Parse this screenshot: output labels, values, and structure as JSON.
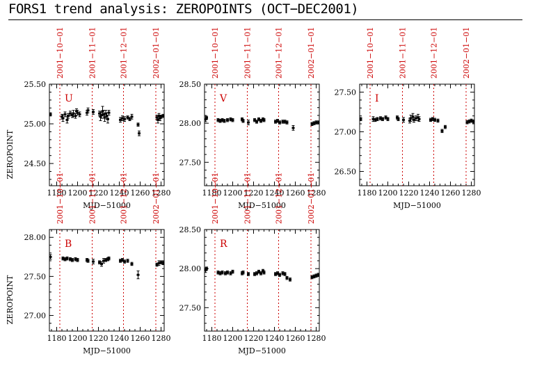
{
  "page": {
    "title": "FORS1 trend analysis: ZEROPOINTS (OCT−DEC2001)"
  },
  "colors": {
    "marker_line": "#cc0000",
    "data": "#000000",
    "axis": "#000000"
  },
  "chart_data": [
    {
      "type": "scatter",
      "panel": "U",
      "xlabel": "MJD−51000",
      "ylabel": "ZEROPOINT",
      "xlim": [
        1173,
        1283
      ],
      "ylim": [
        24.22,
        25.5
      ],
      "xticks": [
        "1180",
        "1200",
        "1220",
        "1240",
        "1260",
        "1280"
      ],
      "yticks": [
        "24.50",
        "25.00",
        "25.50"
      ],
      "date_markers": [
        {
          "label": "2001−10−01",
          "mjd": 1183
        },
        {
          "label": "2001−11−01",
          "mjd": 1214
        },
        {
          "label": "2001−12−01",
          "mjd": 1244
        },
        {
          "label": "2002−01−01",
          "mjd": 1275
        }
      ],
      "points": [
        [
          1174,
          25.12,
          0.02
        ],
        [
          1185,
          25.09,
          0.03
        ],
        [
          1186,
          25.07,
          0.04
        ],
        [
          1188,
          25.12,
          0.03
        ],
        [
          1190,
          25.05,
          0.04
        ],
        [
          1191,
          25.1,
          0.03
        ],
        [
          1193,
          25.13,
          0.03
        ],
        [
          1195,
          25.11,
          0.03
        ],
        [
          1196,
          25.13,
          0.04
        ],
        [
          1198,
          25.1,
          0.03
        ],
        [
          1199,
          25.16,
          0.03
        ],
        [
          1200,
          25.14,
          0.03
        ],
        [
          1202,
          25.12,
          0.03
        ],
        [
          1209,
          25.14,
          0.03
        ],
        [
          1210,
          25.17,
          0.03
        ],
        [
          1215,
          25.15,
          0.03
        ],
        [
          1221,
          25.13,
          0.03
        ],
        [
          1222,
          25.09,
          0.05
        ],
        [
          1223,
          25.11,
          0.04
        ],
        [
          1224,
          25.16,
          0.06
        ],
        [
          1225,
          25.12,
          0.05
        ],
        [
          1226,
          25.08,
          0.05
        ],
        [
          1227,
          25.13,
          0.04
        ],
        [
          1228,
          25.1,
          0.04
        ],
        [
          1229,
          25.06,
          0.05
        ],
        [
          1230,
          25.14,
          0.03
        ],
        [
          1241,
          25.05,
          0.03
        ],
        [
          1243,
          25.07,
          0.03
        ],
        [
          1245,
          25.06,
          0.03
        ],
        [
          1248,
          25.08,
          0.02
        ],
        [
          1250,
          25.06,
          0.02
        ],
        [
          1252,
          25.09,
          0.03
        ],
        [
          1258,
          24.99,
          0.02
        ],
        [
          1259,
          24.88,
          0.03
        ],
        [
          1276,
          25.08,
          0.03
        ],
        [
          1277,
          25.05,
          0.04
        ],
        [
          1278,
          25.1,
          0.03
        ],
        [
          1279,
          25.07,
          0.03
        ],
        [
          1280,
          25.09,
          0.02
        ],
        [
          1282,
          25.1,
          0.02
        ]
      ]
    },
    {
      "type": "scatter",
      "panel": "V",
      "xlabel": "MJD−51000",
      "ylabel": "",
      "xlim": [
        1173,
        1283
      ],
      "ylim": [
        27.2,
        28.5
      ],
      "xticks": [
        "1180",
        "1200",
        "1220",
        "1240",
        "1260",
        "1280"
      ],
      "yticks": [
        "27.50",
        "28.00",
        "28.50"
      ],
      "date_markers": [
        {
          "label": "2001−10−01",
          "mjd": 1183
        },
        {
          "label": "2001−11−01",
          "mjd": 1214
        },
        {
          "label": "2001−12−01",
          "mjd": 1244
        },
        {
          "label": "2002−01−01",
          "mjd": 1275
        }
      ],
      "points": [
        [
          1174,
          28.05,
          0.03
        ],
        [
          1175,
          28.07,
          0.02
        ],
        [
          1186,
          28.04,
          0.02
        ],
        [
          1188,
          28.03,
          0.02
        ],
        [
          1190,
          28.04,
          0.02
        ],
        [
          1192,
          28.03,
          0.02
        ],
        [
          1195,
          28.04,
          0.02
        ],
        [
          1198,
          28.05,
          0.02
        ],
        [
          1200,
          28.04,
          0.02
        ],
        [
          1209,
          28.05,
          0.02
        ],
        [
          1210,
          28.03,
          0.02
        ],
        [
          1215,
          28.01,
          0.03
        ],
        [
          1221,
          28.04,
          0.02
        ],
        [
          1223,
          28.02,
          0.02
        ],
        [
          1225,
          28.05,
          0.02
        ],
        [
          1227,
          28.03,
          0.02
        ],
        [
          1229,
          28.05,
          0.02
        ],
        [
          1230,
          28.04,
          0.02
        ],
        [
          1241,
          28.02,
          0.02
        ],
        [
          1243,
          28.03,
          0.02
        ],
        [
          1245,
          28.01,
          0.02
        ],
        [
          1248,
          28.02,
          0.02
        ],
        [
          1250,
          28.02,
          0.02
        ],
        [
          1252,
          28.01,
          0.02
        ],
        [
          1258,
          27.94,
          0.03
        ],
        [
          1276,
          27.99,
          0.02
        ],
        [
          1278,
          28.0,
          0.02
        ],
        [
          1280,
          28.01,
          0.02
        ],
        [
          1282,
          28.01,
          0.02
        ]
      ]
    },
    {
      "type": "scatter",
      "panel": "I",
      "xlabel": "MJD−51000",
      "ylabel": "",
      "xlim": [
        1173,
        1283
      ],
      "ylim": [
        26.32,
        27.6
      ],
      "xticks": [
        "1180",
        "1200",
        "1220",
        "1240",
        "1260",
        "1280"
      ],
      "yticks": [
        "26.50",
        "27.00",
        "27.50"
      ],
      "date_markers": [
        {
          "label": "2001−10−01",
          "mjd": 1183
        },
        {
          "label": "2001−11−01",
          "mjd": 1214
        },
        {
          "label": "2001−12−01",
          "mjd": 1244
        },
        {
          "label": "2002−01−01",
          "mjd": 1275
        }
      ],
      "points": [
        [
          1174,
          27.16,
          0.02
        ],
        [
          1186,
          27.16,
          0.03
        ],
        [
          1188,
          27.15,
          0.02
        ],
        [
          1190,
          27.16,
          0.02
        ],
        [
          1193,
          27.17,
          0.02
        ],
        [
          1195,
          27.16,
          0.02
        ],
        [
          1198,
          27.18,
          0.02
        ],
        [
          1200,
          27.16,
          0.02
        ],
        [
          1209,
          27.18,
          0.02
        ],
        [
          1210,
          27.16,
          0.02
        ],
        [
          1215,
          27.15,
          0.03
        ],
        [
          1221,
          27.14,
          0.03
        ],
        [
          1222,
          27.17,
          0.04
        ],
        [
          1224,
          27.19,
          0.04
        ],
        [
          1225,
          27.15,
          0.03
        ],
        [
          1227,
          27.17,
          0.03
        ],
        [
          1229,
          27.18,
          0.04
        ],
        [
          1230,
          27.16,
          0.03
        ],
        [
          1241,
          27.15,
          0.02
        ],
        [
          1243,
          27.16,
          0.02
        ],
        [
          1245,
          27.15,
          0.02
        ],
        [
          1248,
          27.14,
          0.02
        ],
        [
          1252,
          27.01,
          0.02
        ],
        [
          1255,
          27.06,
          0.02
        ],
        [
          1276,
          27.12,
          0.02
        ],
        [
          1278,
          27.13,
          0.02
        ],
        [
          1280,
          27.14,
          0.02
        ],
        [
          1282,
          27.13,
          0.02
        ]
      ]
    },
    {
      "type": "scatter",
      "panel": "B",
      "xlabel": "MJD−51000",
      "ylabel": "ZEROPOINT",
      "xlim": [
        1173,
        1283
      ],
      "ylim": [
        26.8,
        28.1
      ],
      "xticks": [
        "1180",
        "1200",
        "1220",
        "1240",
        "1260",
        "1280"
      ],
      "yticks": [
        "27.00",
        "27.50",
        "28.00"
      ],
      "date_markers": [
        {
          "label": "2001−10−01",
          "mjd": 1183
        },
        {
          "label": "2001−11−01",
          "mjd": 1214
        },
        {
          "label": "2001−12−01",
          "mjd": 1244
        },
        {
          "label": "2002−01−01",
          "mjd": 1275
        }
      ],
      "points": [
        [
          1174,
          27.75,
          0.03
        ],
        [
          1186,
          27.73,
          0.02
        ],
        [
          1188,
          27.72,
          0.02
        ],
        [
          1190,
          27.73,
          0.02
        ],
        [
          1193,
          27.72,
          0.02
        ],
        [
          1195,
          27.71,
          0.02
        ],
        [
          1198,
          27.72,
          0.02
        ],
        [
          1200,
          27.71,
          0.02
        ],
        [
          1209,
          27.71,
          0.02
        ],
        [
          1210,
          27.7,
          0.02
        ],
        [
          1215,
          27.69,
          0.03
        ],
        [
          1221,
          27.68,
          0.02
        ],
        [
          1223,
          27.66,
          0.03
        ],
        [
          1225,
          27.7,
          0.03
        ],
        [
          1227,
          27.71,
          0.02
        ],
        [
          1229,
          27.72,
          0.02
        ],
        [
          1230,
          27.73,
          0.02
        ],
        [
          1241,
          27.7,
          0.02
        ],
        [
          1243,
          27.71,
          0.02
        ],
        [
          1245,
          27.69,
          0.02
        ],
        [
          1248,
          27.7,
          0.02
        ],
        [
          1252,
          27.66,
          0.02
        ],
        [
          1258,
          27.52,
          0.05
        ],
        [
          1276,
          27.65,
          0.02
        ],
        [
          1278,
          27.67,
          0.03
        ],
        [
          1280,
          27.68,
          0.02
        ],
        [
          1282,
          27.67,
          0.02
        ]
      ]
    },
    {
      "type": "scatter",
      "panel": "R",
      "xlabel": "MJD−51000",
      "ylabel": "",
      "xlim": [
        1173,
        1283
      ],
      "ylim": [
        27.2,
        28.5
      ],
      "xticks": [
        "1180",
        "1200",
        "1220",
        "1240",
        "1260",
        "1280"
      ],
      "yticks": [
        "27.50",
        "28.00",
        "28.50"
      ],
      "date_markers": [
        {
          "label": "2001−10−01",
          "mjd": 1183
        },
        {
          "label": "2001−11−01",
          "mjd": 1214
        },
        {
          "label": "2001−12−01",
          "mjd": 1244
        },
        {
          "label": "2002−01−01",
          "mjd": 1275
        }
      ],
      "points": [
        [
          1174,
          27.98,
          0.03
        ],
        [
          1175,
          28.0,
          0.02
        ],
        [
          1186,
          27.95,
          0.02
        ],
        [
          1188,
          27.94,
          0.02
        ],
        [
          1190,
          27.95,
          0.02
        ],
        [
          1193,
          27.94,
          0.02
        ],
        [
          1195,
          27.95,
          0.02
        ],
        [
          1198,
          27.94,
          0.02
        ],
        [
          1200,
          27.96,
          0.02
        ],
        [
          1209,
          27.94,
          0.02
        ],
        [
          1210,
          27.95,
          0.02
        ],
        [
          1215,
          27.93,
          0.02
        ],
        [
          1221,
          27.93,
          0.02
        ],
        [
          1223,
          27.94,
          0.02
        ],
        [
          1225,
          27.96,
          0.02
        ],
        [
          1227,
          27.94,
          0.02
        ],
        [
          1229,
          27.97,
          0.02
        ],
        [
          1230,
          27.95,
          0.02
        ],
        [
          1241,
          27.93,
          0.02
        ],
        [
          1243,
          27.94,
          0.02
        ],
        [
          1245,
          27.92,
          0.02
        ],
        [
          1248,
          27.94,
          0.02
        ],
        [
          1250,
          27.93,
          0.02
        ],
        [
          1252,
          27.88,
          0.02
        ],
        [
          1255,
          27.86,
          0.02
        ],
        [
          1276,
          27.89,
          0.02
        ],
        [
          1278,
          27.9,
          0.02
        ],
        [
          1280,
          27.91,
          0.02
        ],
        [
          1282,
          27.92,
          0.02
        ]
      ]
    }
  ]
}
